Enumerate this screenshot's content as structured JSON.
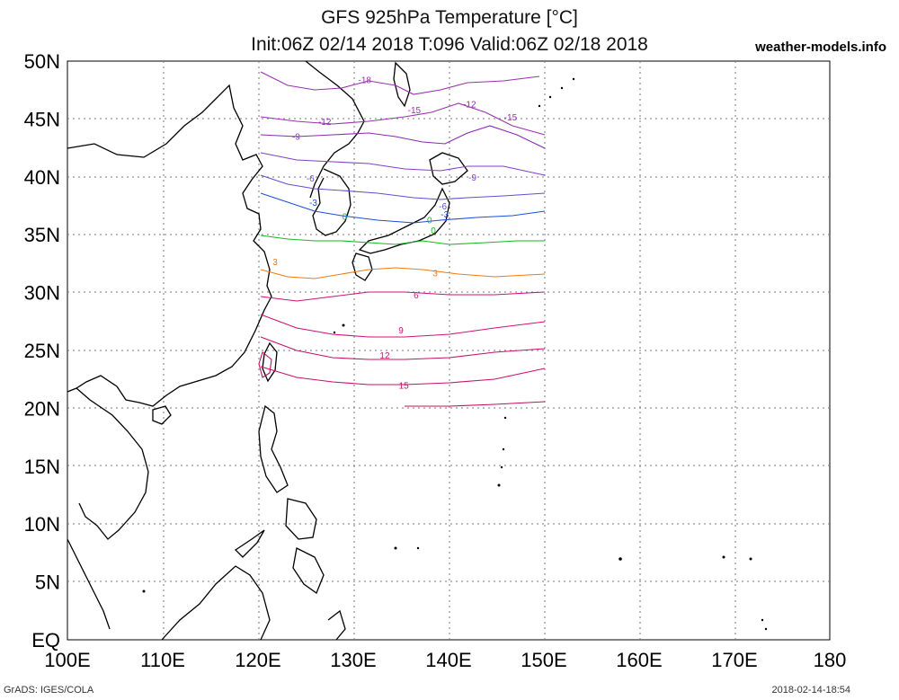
{
  "header": {
    "title": "GFS 925hPa Temperature [°C]",
    "subtitle": "Init:06Z 02/14 2018 T:096 Valid:06Z 02/18 2018",
    "brand": "weather-models.info"
  },
  "footer": {
    "left": "GrADS: IGES/COLA",
    "right": "2018-02-14-18:54"
  },
  "map": {
    "projection": "lat-lon",
    "lon_range": [
      100,
      180
    ],
    "lat_range": [
      0,
      50
    ],
    "x_ticks": [
      "100E",
      "110E",
      "120E",
      "130E",
      "140E",
      "150E",
      "160E",
      "170E",
      "180"
    ],
    "y_ticks": [
      "50N",
      "45N",
      "40N",
      "35N",
      "30N",
      "25N",
      "20N",
      "15N",
      "10N",
      "5N",
      "EQ"
    ],
    "grid": true,
    "data_domain": {
      "lon": [
        120,
        150
      ],
      "lat": [
        20,
        50
      ]
    },
    "contour_colors": {
      "-18": "#9b30b0",
      "-15": "#9b30b0",
      "-12": "#8a2ab8",
      "-9": "#8040c8",
      "-6": "#6050d0",
      "-3": "#1e4ed8",
      "0": "#19b820",
      "3": "#f07a10",
      "6": "#d0107a",
      "9": "#d0107a",
      "12": "#c8106e",
      "15": "#c8106e",
      "18": "#c01060"
    },
    "contour_labels": [
      {
        "text": "-18",
        "lon": 131.2,
        "lat": 48.4
      },
      {
        "text": "-15",
        "lon": 136.4,
        "lat": 45.8
      },
      {
        "text": "-12",
        "lon": 142.2,
        "lat": 46.3
      },
      {
        "text": "-15",
        "lon": 146.5,
        "lat": 45.2
      },
      {
        "text": "-12",
        "lon": 127.0,
        "lat": 44.8
      },
      {
        "text": "-9",
        "lon": 124.0,
        "lat": 43.5
      },
      {
        "text": "-9",
        "lon": 142.5,
        "lat": 40.0
      },
      {
        "text": "-6",
        "lon": 125.5,
        "lat": 39.9
      },
      {
        "text": "-3",
        "lon": 125.8,
        "lat": 37.8
      },
      {
        "text": "-6",
        "lon": 139.4,
        "lat": 37.5
      },
      {
        "text": "-3",
        "lon": 139.6,
        "lat": 36.8
      },
      {
        "text": "0",
        "lon": 138.0,
        "lat": 36.3
      },
      {
        "text": "0",
        "lon": 129.1,
        "lat": 36.6
      },
      {
        "text": "0",
        "lon": 138.4,
        "lat": 35.4
      },
      {
        "text": "3",
        "lon": 121.8,
        "lat": 32.7
      },
      {
        "text": "3",
        "lon": 138.6,
        "lat": 31.7
      },
      {
        "text": "6",
        "lon": 136.6,
        "lat": 29.8
      },
      {
        "text": "9",
        "lon": 135.0,
        "lat": 26.8
      },
      {
        "text": "12",
        "lon": 133.3,
        "lat": 24.6
      },
      {
        "text": "15",
        "lon": 135.3,
        "lat": 22.0
      }
    ]
  }
}
